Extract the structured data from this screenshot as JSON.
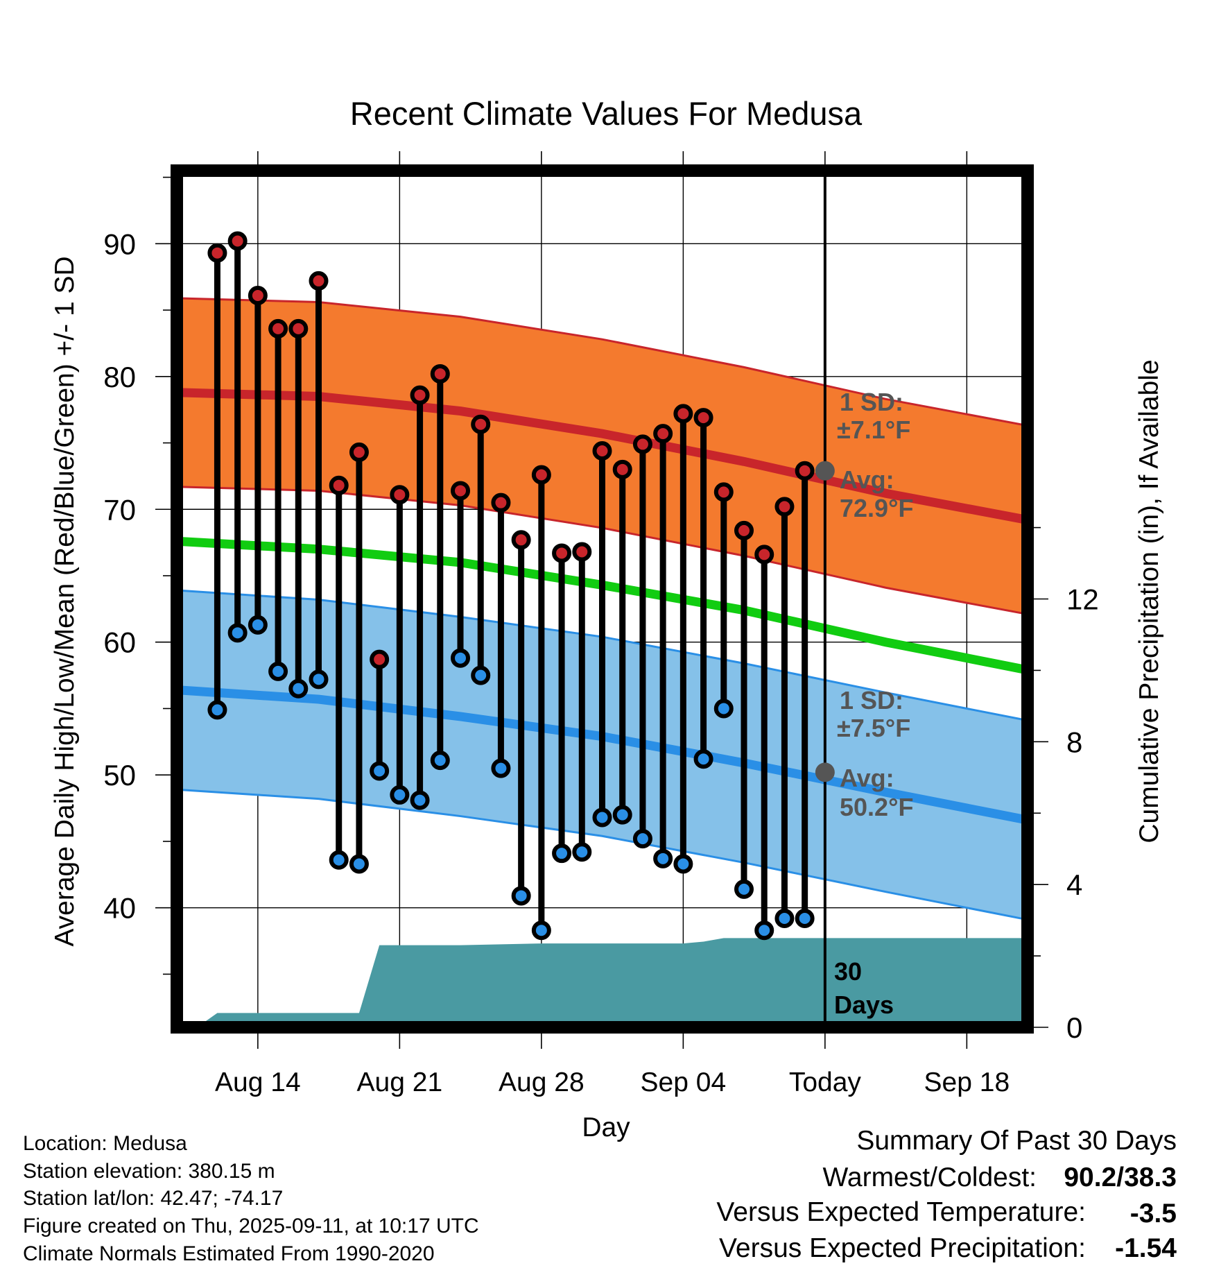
{
  "title": "Recent Climate Values For Medusa",
  "chart_data": {
    "type": "line",
    "title": "Recent Climate Values For Medusa",
    "xlabel": "Day",
    "ylabel": "Average Daily High/Low/Mean (Red/Blue/Green) +/- 1 SD",
    "y2label": "Cumulative Precipitation (in), If Available",
    "ylim": [
      31,
      95.5
    ],
    "y2lim": [
      0,
      24
    ],
    "xlim": [
      "Aug 10",
      "Sep 21"
    ],
    "x_tick_labels": [
      "Aug 14",
      "Aug 21",
      "Aug 28",
      "Sep 04",
      "Today",
      "Sep 18"
    ],
    "y_ticks": [
      40,
      50,
      60,
      70,
      80,
      90
    ],
    "y2_ticks": [
      0,
      4,
      8,
      12
    ],
    "grid": true,
    "dates": [
      "Aug 12",
      "Aug 13",
      "Aug 14",
      "Aug 15",
      "Aug 16",
      "Aug 17",
      "Aug 18",
      "Aug 19",
      "Aug 20",
      "Aug 21",
      "Aug 22",
      "Aug 23",
      "Aug 24",
      "Aug 25",
      "Aug 26",
      "Aug 27",
      "Aug 28",
      "Aug 29",
      "Aug 30",
      "Aug 31",
      "Sep 01",
      "Sep 02",
      "Sep 03",
      "Sep 04",
      "Sep 05",
      "Sep 06",
      "Sep 07",
      "Sep 08",
      "Sep 09",
      "Sep 10"
    ],
    "series": [
      {
        "values": [
          89.3,
          90.2,
          86.1,
          83.6,
          83.6,
          87.2,
          71.8,
          74.3,
          58.7,
          71.1,
          78.6,
          80.2,
          71.4,
          76.4,
          70.5,
          67.7,
          72.6,
          66.7,
          66.8,
          74.4,
          73.0,
          74.9,
          75.7,
          77.2,
          76.9,
          71.3,
          68.4,
          66.6,
          70.2,
          72.9
        ],
        "color": "#c8252b"
      },
      {
        "values": [
          54.9,
          60.7,
          61.3,
          57.8,
          56.5,
          57.2,
          43.6,
          43.3,
          50.3,
          48.5,
          48.1,
          51.1,
          58.8,
          57.5,
          50.5,
          40.9,
          38.3,
          44.1,
          44.2,
          46.8,
          47.0,
          45.2,
          43.7,
          43.3,
          51.2,
          55.0,
          41.4,
          38.3,
          39.2,
          39.2
        ],
        "color": "#2a8fe6"
      }
    ],
    "normals": {
      "dates": [
        "Aug 10",
        "Aug 17",
        "Aug 24",
        "Aug 31",
        "Sep 07",
        "Sep 14",
        "Sep 21"
      ],
      "high_mean": [
        78.8,
        78.5,
        77.4,
        75.7,
        73.6,
        71.2,
        69.2
      ],
      "high_sd": 7.1,
      "low_mean": [
        56.4,
        55.7,
        54.4,
        52.9,
        50.9,
        48.7,
        46.6
      ],
      "low_sd": 7.5,
      "mean": [
        67.6,
        67.0,
        66.0,
        64.3,
        62.4,
        60.0,
        57.9
      ]
    },
    "precipitation": {
      "dates": [
        "Aug 11",
        "Aug 12",
        "Aug 19",
        "Aug 20",
        "Aug 24",
        "Aug 28",
        "Sep 04",
        "Sep 05",
        "Sep 06",
        "Sep 21"
      ],
      "values": [
        0.0,
        0.4,
        0.4,
        2.3,
        2.3,
        2.35,
        2.35,
        2.4,
        2.5,
        2.5
      ],
      "color": "#4a9aa2"
    }
  },
  "today_label": "Today",
  "annotations": {
    "high_sd_line1": "1 SD:",
    "high_sd_line2": "±7.1°F",
    "high_avg_line1": "Avg:",
    "high_avg_line2": "72.9°F",
    "low_sd_line1": "1 SD:",
    "low_sd_line2": "±7.5°F",
    "low_avg_line1": "Avg:",
    "low_avg_line2": "50.2°F",
    "days_line1": "30",
    "days_line2": "Days"
  },
  "info": {
    "location": "Location: Medusa",
    "elevation": "Station elevation: 380.15 m",
    "latlon": "Station lat/lon: 42.47; -74.17",
    "created": "Figure created on Thu, 2025-09-11, at 10:17 UTC",
    "normals": "Climate Normals Estimated From 1990-2020"
  },
  "summary": {
    "title": "Summary Of Past 30 Days",
    "warm_cold_label": "Warmest/Coldest:",
    "warm_cold_value": "90.2/38.3",
    "temp_label": "Versus Expected Temperature:",
    "temp_value": "-3.5",
    "temp_color": "#2a8fe6",
    "precip_label": "Versus Expected Precipitation:",
    "precip_value": "-1.54",
    "precip_color": "#a0522d"
  },
  "colors": {
    "high_band": "#f47a2e",
    "high_line": "#c8252b",
    "low_band": "#85c1e9",
    "low_line": "#2a8fe6",
    "mean_line": "#11cc11",
    "precip": "#4a9aa2"
  }
}
